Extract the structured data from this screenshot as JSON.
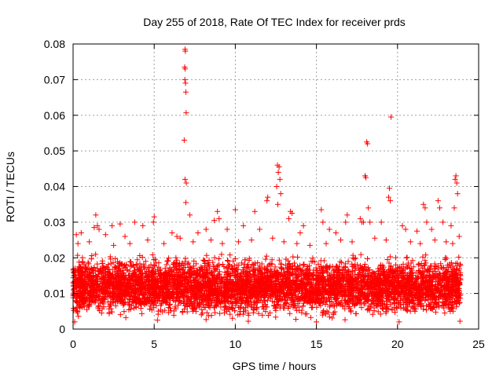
{
  "chart_data": {
    "type": "scatter",
    "title": "Day 255 of 2018, Rate Of TEC Index for receiver prds",
    "xlabel": "GPS time / hours",
    "ylabel": "ROTI / TECUs",
    "xlim": [
      0,
      25
    ],
    "ylim": [
      0,
      0.08
    ],
    "x_ticks": [
      {
        "value": 0,
        "label": "0"
      },
      {
        "value": 5,
        "label": "5"
      },
      {
        "value": 10,
        "label": "10"
      },
      {
        "value": 15,
        "label": "15"
      },
      {
        "value": 20,
        "label": "20"
      },
      {
        "value": 25,
        "label": "25"
      }
    ],
    "y_ticks": [
      {
        "value": 0,
        "label": "0"
      },
      {
        "value": 0.01,
        "label": "0.01"
      },
      {
        "value": 0.02,
        "label": "0.02"
      },
      {
        "value": 0.03,
        "label": "0.03"
      },
      {
        "value": 0.04,
        "label": "0.04"
      },
      {
        "value": 0.05,
        "label": "0.05"
      },
      {
        "value": 0.06,
        "label": "0.06"
      },
      {
        "value": 0.07,
        "label": "0.07"
      },
      {
        "value": 0.08,
        "label": "0.08"
      }
    ],
    "grid": true,
    "marker": "+",
    "color": "#ff0000",
    "bulk_band": {
      "x_range": [
        0,
        23.9
      ],
      "y_min": 0.002,
      "y_max": 0.022
    },
    "series": [
      {
        "name": "ROTI",
        "points": [
          [
            6.9,
            0.0785
          ],
          [
            6.92,
            0.078
          ],
          [
            6.88,
            0.0735
          ],
          [
            6.91,
            0.073
          ],
          [
            6.89,
            0.07
          ],
          [
            6.93,
            0.069
          ],
          [
            6.95,
            0.0665
          ],
          [
            6.97,
            0.0607
          ],
          [
            6.85,
            0.053
          ],
          [
            6.9,
            0.042
          ],
          [
            6.98,
            0.041
          ],
          [
            6.95,
            0.0355
          ],
          [
            19.6,
            0.0595
          ],
          [
            18.1,
            0.0525
          ],
          [
            18.15,
            0.052
          ],
          [
            18.0,
            0.043
          ],
          [
            18.05,
            0.0425
          ],
          [
            19.5,
            0.0395
          ],
          [
            19.45,
            0.037
          ],
          [
            19.55,
            0.036
          ],
          [
            12.6,
            0.046
          ],
          [
            12.7,
            0.0455
          ],
          [
            12.65,
            0.044
          ],
          [
            12.75,
            0.042
          ],
          [
            12.55,
            0.04
          ],
          [
            12.8,
            0.038
          ],
          [
            12.62,
            0.035
          ],
          [
            23.6,
            0.043
          ],
          [
            23.55,
            0.042
          ],
          [
            23.65,
            0.041
          ],
          [
            23.7,
            0.038
          ],
          [
            23.5,
            0.034
          ],
          [
            12.0,
            0.037
          ],
          [
            11.95,
            0.036
          ],
          [
            11.2,
            0.033
          ],
          [
            10.0,
            0.0335
          ],
          [
            13.4,
            0.033
          ],
          [
            13.3,
            0.031
          ],
          [
            13.5,
            0.0325
          ],
          [
            16.9,
            0.032
          ],
          [
            16.8,
            0.03
          ],
          [
            17.7,
            0.031
          ],
          [
            17.8,
            0.03
          ],
          [
            17.9,
            0.03
          ],
          [
            18.2,
            0.034
          ],
          [
            18.3,
            0.03
          ],
          [
            21.6,
            0.035
          ],
          [
            21.7,
            0.034
          ],
          [
            21.8,
            0.03
          ],
          [
            22.5,
            0.036
          ],
          [
            22.6,
            0.034
          ],
          [
            22.8,
            0.03
          ],
          [
            23.3,
            0.029
          ],
          [
            8.9,
            0.033
          ],
          [
            9.0,
            0.031
          ],
          [
            8.7,
            0.0305
          ],
          [
            7.2,
            0.032
          ],
          [
            5.0,
            0.0315
          ],
          [
            4.95,
            0.03
          ],
          [
            4.3,
            0.029
          ],
          [
            3.8,
            0.03
          ],
          [
            2.9,
            0.0295
          ],
          [
            2.4,
            0.029
          ],
          [
            1.4,
            0.032
          ],
          [
            1.5,
            0.029
          ],
          [
            1.3,
            0.0285
          ],
          [
            1.6,
            0.028
          ],
          [
            0.2,
            0.0265
          ],
          [
            0.5,
            0.027
          ],
          [
            15.3,
            0.0335
          ],
          [
            15.4,
            0.03
          ],
          [
            15.8,
            0.028
          ],
          [
            14.2,
            0.029
          ],
          [
            14.0,
            0.027
          ],
          [
            20.3,
            0.029
          ],
          [
            20.5,
            0.028
          ],
          [
            19.0,
            0.03
          ],
          [
            16.2,
            0.027
          ],
          [
            10.5,
            0.029
          ],
          [
            11.5,
            0.028
          ],
          [
            6.1,
            0.027
          ],
          [
            6.4,
            0.026
          ],
          [
            7.7,
            0.027
          ],
          [
            8.2,
            0.028
          ],
          [
            9.5,
            0.028
          ],
          [
            3.2,
            0.026
          ],
          [
            2.0,
            0.0265
          ],
          [
            22.1,
            0.028
          ],
          [
            21.2,
            0.0275
          ],
          [
            23.8,
            0.026
          ],
          [
            0.1,
            0.002
          ],
          [
            5.2,
            0.0025
          ],
          [
            10.8,
            0.0022
          ],
          [
            15.0,
            0.002
          ],
          [
            20.1,
            0.002
          ],
          [
            23.85,
            0.0022
          ],
          [
            0.3,
            0.024
          ],
          [
            1.0,
            0.0245
          ],
          [
            2.5,
            0.0235
          ],
          [
            3.5,
            0.024
          ],
          [
            4.6,
            0.025
          ],
          [
            5.6,
            0.024
          ],
          [
            6.6,
            0.0255
          ],
          [
            7.4,
            0.0245
          ],
          [
            8.5,
            0.025
          ],
          [
            9.2,
            0.024
          ],
          [
            10.2,
            0.0245
          ],
          [
            11.0,
            0.025
          ],
          [
            12.3,
            0.0255
          ],
          [
            13.0,
            0.0245
          ],
          [
            13.8,
            0.024
          ],
          [
            14.6,
            0.0235
          ],
          [
            15.6,
            0.024
          ],
          [
            16.5,
            0.025
          ],
          [
            17.2,
            0.0245
          ],
          [
            18.6,
            0.0255
          ],
          [
            19.3,
            0.025
          ],
          [
            20.8,
            0.0245
          ],
          [
            21.4,
            0.024
          ],
          [
            22.3,
            0.025
          ],
          [
            23.0,
            0.0245
          ],
          [
            23.4,
            0.024
          ]
        ]
      }
    ]
  }
}
